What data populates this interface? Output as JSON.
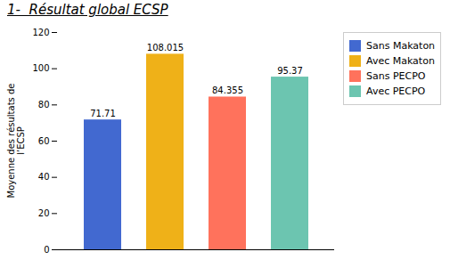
{
  "chart_data": {
    "type": "bar",
    "title": "1-  Résultat global ECSP",
    "categories": [
      "Sans Makaton",
      "Avec Makaton",
      "Sans PECPO",
      "Avec PECPO"
    ],
    "values": [
      71.71,
      108.015,
      84.355,
      95.37
    ],
    "ylabel": "Moyenne des résultats de\nl’ECSP",
    "ylim": [
      0,
      120
    ],
    "yticks": [
      0,
      20,
      40,
      60,
      80,
      100,
      120
    ],
    "data_labels": true,
    "tick_labels": "y",
    "legend": "right"
  }
}
